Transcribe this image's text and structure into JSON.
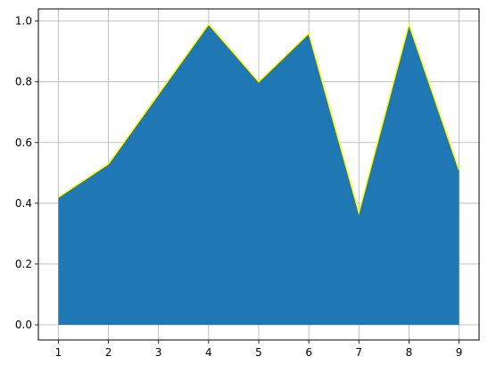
{
  "chart_data": {
    "type": "area",
    "title": "",
    "xlabel": "",
    "ylabel": "",
    "x": [
      1,
      2,
      3,
      4,
      5,
      6,
      7,
      8,
      9
    ],
    "series": [
      {
        "values": [
          0.42,
          0.53,
          0.76,
          0.99,
          0.8,
          0.96,
          0.37,
          0.99,
          0.51
        ]
      }
    ],
    "xlim": [
      0.6,
      9.4
    ],
    "ylim": [
      -0.05,
      1.04
    ],
    "xticks": [
      1,
      2,
      3,
      4,
      5,
      6,
      7,
      8,
      9
    ],
    "xtick_labels": [
      "1",
      "2",
      "3",
      "4",
      "5",
      "6",
      "7",
      "8",
      "9"
    ],
    "yticks": [
      0.0,
      0.2,
      0.4,
      0.6,
      0.8,
      1.0
    ],
    "ytick_labels": [
      "0.0",
      "0.2",
      "0.4",
      "0.6",
      "0.8",
      "1.0"
    ],
    "grid": true,
    "legend": "none",
    "colors": {
      "fill": "#1f77b4",
      "line": "#ffff00",
      "grid": "#b0b0b0",
      "axes": "#000000"
    }
  }
}
